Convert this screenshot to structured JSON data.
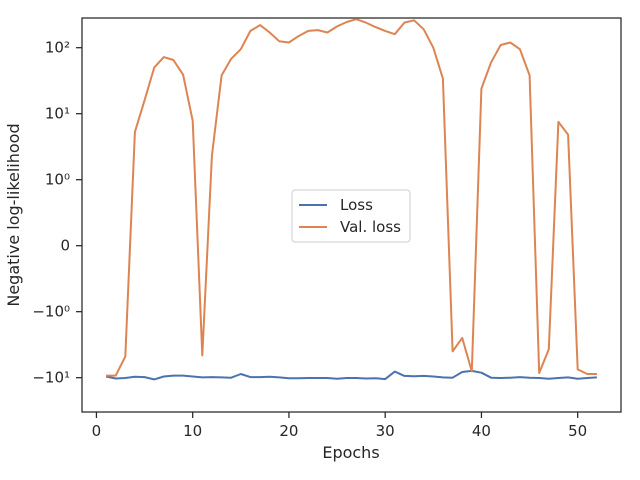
{
  "chart_data": {
    "type": "line",
    "xlabel": "Epochs",
    "ylabel": "Negative log-likelihood",
    "xlim": [
      -1.5,
      54.5
    ],
    "x_ticks": [
      0,
      10,
      20,
      30,
      40,
      50
    ],
    "y_scale": "symlog",
    "y_linthresh": 1,
    "y_ticks": [
      {
        "value": 100,
        "label": "10²"
      },
      {
        "value": 10,
        "label": "10¹"
      },
      {
        "value": 1,
        "label": "10⁰"
      },
      {
        "value": 0,
        "label": "0"
      },
      {
        "value": -1,
        "label": "−10⁰"
      },
      {
        "value": -10,
        "label": "−10¹"
      }
    ],
    "grid": false,
    "legend_position": "center",
    "series": [
      {
        "name": "Loss",
        "color": "#4c72b0",
        "x": [
          1,
          2,
          3,
          4,
          5,
          6,
          7,
          8,
          9,
          10,
          11,
          12,
          13,
          14,
          15,
          16,
          17,
          18,
          19,
          20,
          21,
          22,
          23,
          24,
          25,
          26,
          27,
          28,
          29,
          30,
          31,
          32,
          33,
          34,
          35,
          36,
          37,
          38,
          39,
          40,
          41,
          42,
          43,
          44,
          45,
          46,
          47,
          48,
          49,
          50,
          51,
          52
        ],
        "y": [
          -9.6,
          -10.3,
          -10.1,
          -9.7,
          -9.8,
          -10.6,
          -9.6,
          -9.3,
          -9.3,
          -9.6,
          -9.9,
          -9.8,
          -9.9,
          -10.0,
          -8.8,
          -9.8,
          -9.8,
          -9.7,
          -9.9,
          -10.2,
          -10.2,
          -10.1,
          -10.1,
          -10.1,
          -10.4,
          -10.1,
          -10.1,
          -10.3,
          -10.2,
          -10.5,
          -8.1,
          -9.4,
          -9.5,
          -9.4,
          -9.6,
          -9.9,
          -10.0,
          -8.2,
          -7.9,
          -8.4,
          -10.0,
          -10.1,
          -10.0,
          -9.8,
          -10.0,
          -10.1,
          -10.4,
          -10.1,
          -9.9,
          -10.4,
          -10.1,
          -9.9
        ]
      },
      {
        "name": "Val. loss",
        "color": "#dd8452",
        "x": [
          1,
          2,
          3,
          4,
          5,
          6,
          7,
          8,
          9,
          10,
          11,
          12,
          13,
          14,
          15,
          16,
          17,
          18,
          19,
          20,
          21,
          22,
          23,
          24,
          25,
          26,
          27,
          28,
          29,
          30,
          31,
          32,
          33,
          34,
          35,
          36,
          37,
          38,
          39,
          40,
          41,
          42,
          43,
          44,
          45,
          46,
          47,
          48,
          49,
          50,
          51,
          52
        ],
        "y": [
          -9.3,
          -9.3,
          -4.8,
          5.3,
          16,
          50,
          72,
          65,
          39,
          7.8,
          -4.6,
          2.3,
          38,
          68,
          95,
          180,
          220,
          170,
          125,
          120,
          150,
          180,
          185,
          170,
          210,
          245,
          270,
          240,
          205,
          180,
          160,
          240,
          260,
          190,
          100,
          34,
          -4.0,
          -2.5,
          -8.0,
          24,
          60,
          110,
          120,
          95,
          38,
          -8.5,
          -3.7,
          7.5,
          4.8,
          -7.5,
          -8.8,
          -8.8
        ]
      }
    ]
  }
}
